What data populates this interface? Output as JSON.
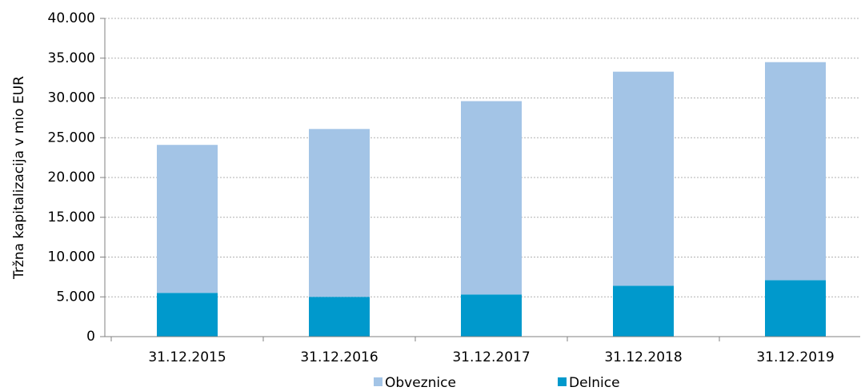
{
  "chart_data": {
    "type": "stacked_bar",
    "y_label": "Tržna kapitalizacija v mio EUR",
    "categories": [
      "31.12.2015",
      "31.12.2016",
      "31.12.2017",
      "31.12.2018",
      "31.12.2019"
    ],
    "series": [
      {
        "name": "Delnice",
        "color": "#0099cc",
        "values": [
          5500,
          5000,
          5300,
          6400,
          7100
        ]
      },
      {
        "name": "Obveznice",
        "color": "#a3c4e6",
        "values": [
          18600,
          21100,
          24300,
          26900,
          27400
        ]
      }
    ],
    "ylim": [
      0,
      40000
    ],
    "yticks": [
      0,
      {
        "value": 5000,
        "label": "5.000"
      },
      {
        "value": 10000,
        "label": "10.000"
      },
      {
        "value": 15000,
        "label": "15.000"
      },
      {
        "value": 20000,
        "label": "20.000"
      },
      {
        "value": 25000,
        "label": "25.000"
      },
      {
        "value": 30000,
        "label": "30.000"
      },
      {
        "value": 35000,
        "label": "35.000"
      },
      {
        "value": 40000,
        "label": "40.000"
      }
    ],
    "grid": true
  }
}
